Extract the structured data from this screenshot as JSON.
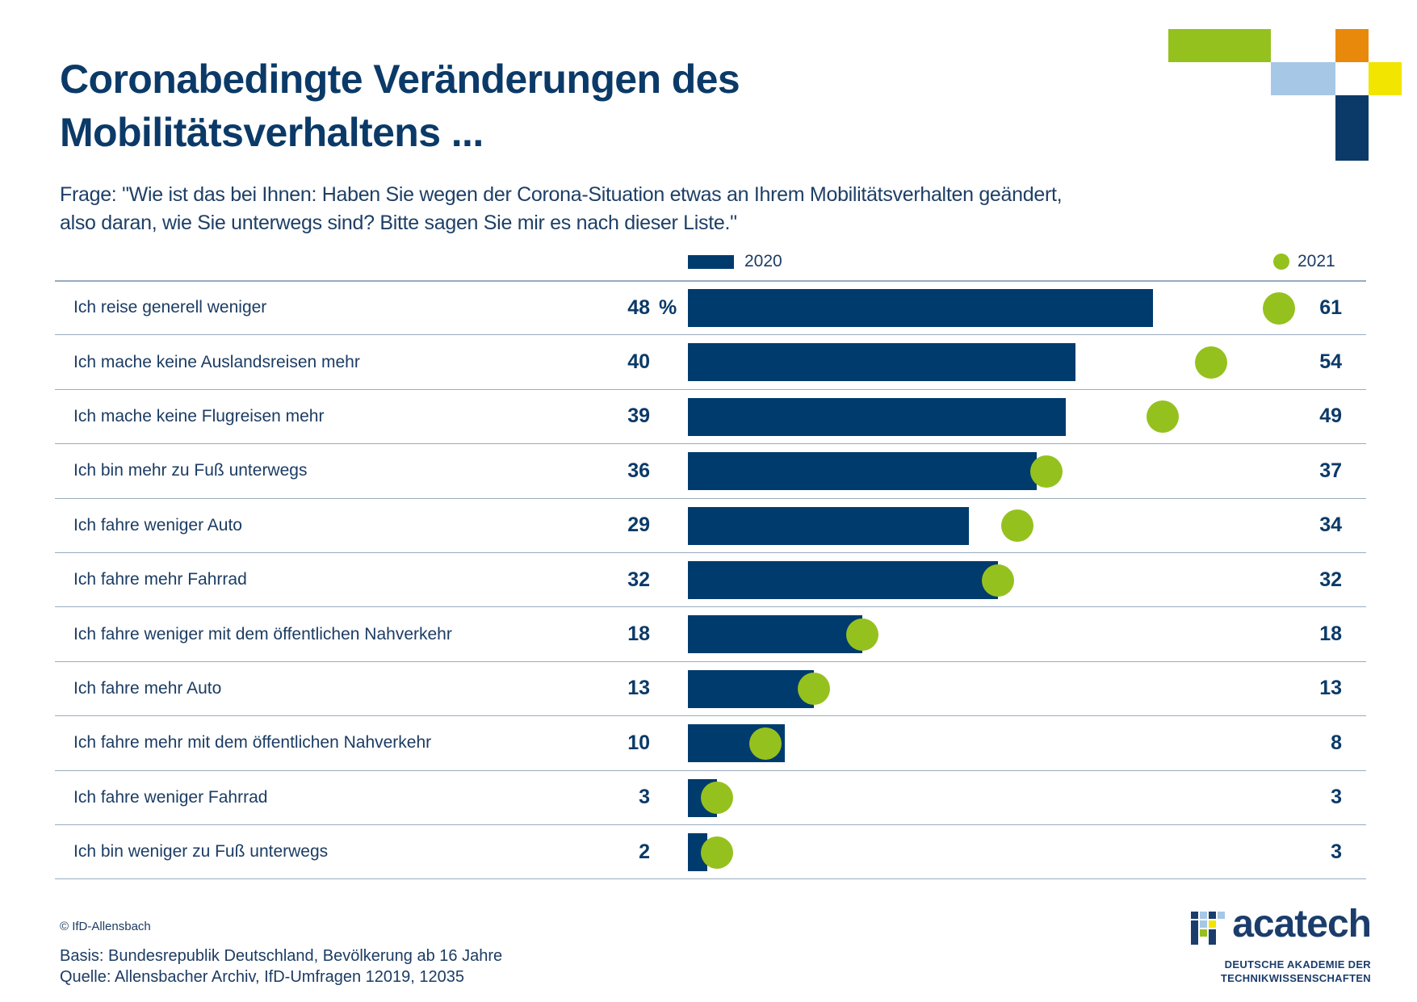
{
  "chart_data": {
    "type": "bar",
    "orientation": "horizontal",
    "title": "Coronabedingte Veränderungen des Mobilitätsverhaltens ...",
    "subtitle_lines": [
      "Frage: \"Wie ist das bei Ihnen: Haben Sie wegen der Corona-Situation etwas an Ihrem Mobilitätsverhalten geändert,",
      "also daran, wie Sie unterwegs sind? Bitte sagen Sie mir es nach dieser Liste.\""
    ],
    "unit": "%",
    "legend_position": "top",
    "grid": false,
    "categories": [
      "Ich reise generell weniger",
      "Ich mache keine Auslandsreisen mehr",
      "Ich mache keine Flugreisen mehr",
      "Ich bin mehr zu Fuß unterwegs",
      "Ich fahre weniger Auto",
      "Ich fahre mehr Fahrrad",
      "Ich fahre weniger mit dem öffentlichen Nahverkehr",
      "Ich fahre mehr Auto",
      "Ich fahre mehr mit dem öffentlichen Nahverkehr",
      "Ich fahre weniger Fahrrad",
      "Ich bin weniger zu Fuß unterwegs"
    ],
    "series": [
      {
        "name": "2020",
        "marker": "bar",
        "color": "#003b6e",
        "values": [
          48,
          40,
          39,
          36,
          29,
          32,
          18,
          13,
          10,
          3,
          2
        ]
      },
      {
        "name": "2021",
        "marker": "dot",
        "color": "#95c11f",
        "values": [
          61,
          54,
          49,
          37,
          34,
          32,
          18,
          13,
          8,
          3,
          3
        ]
      }
    ]
  },
  "footer": {
    "copyright": "© IfD-Allensbach",
    "basis": "Basis: Bundesrepublik Deutschland, Bevölkerung ab 16 Jahre",
    "source": "Quelle: Allensbacher Archiv, IfD-Umfragen 12019, 12035"
  },
  "logo": {
    "wordmark": "acatech",
    "tagline_lines": [
      "DEUTSCHE AKADEMIE DER",
      "TECHNIKWISSENSCHAFTEN"
    ],
    "icon": "acatech-block-icon"
  },
  "colors": {
    "title": "#0b3a68",
    "text": "#1c3c63",
    "rule": "#9aabbf",
    "accent_green": "#95c11f",
    "accent_orange": "#e8890c",
    "accent_light_blue": "#a7c7e6",
    "accent_yellow": "#f2e500",
    "accent_navy": "#0b3a68"
  }
}
